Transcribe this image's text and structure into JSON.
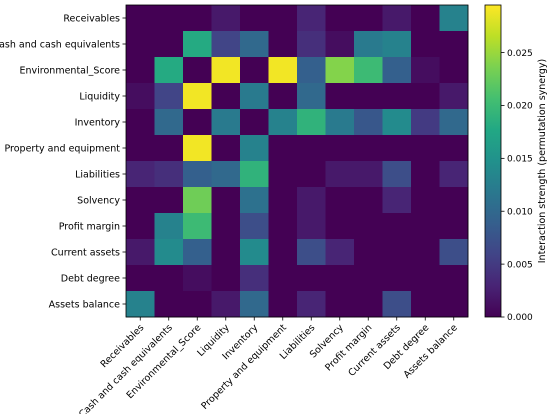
{
  "chart_data": {
    "type": "heatmap",
    "title": "",
    "xlabel": "",
    "ylabel": "",
    "x_categories": [
      "Receivables",
      "Cash and cash equivalents",
      "Environmental_Score",
      "Liquidity",
      "Inventory",
      "Property and equipment",
      "Liabilities",
      "Solvency",
      "Profit margin",
      "Current assets",
      "Debt degree",
      "Assets balance"
    ],
    "y_categories": [
      "Receivables",
      "Cash and cash equivalents",
      "Environmental_Score",
      "Liquidity",
      "Inventory",
      "Property and equipment",
      "Liabilities",
      "Solvency",
      "Profit margin",
      "Current assets",
      "Debt degree",
      "Assets balance"
    ],
    "values": [
      [
        0.0,
        0.0,
        0.0,
        0.002,
        0.0,
        0.0,
        0.003,
        0.0,
        0.0,
        0.002,
        0.0,
        0.013
      ],
      [
        0.0,
        0.0,
        0.018,
        0.006,
        0.01,
        0.0,
        0.004,
        0.001,
        0.012,
        0.013,
        0.0,
        0.0
      ],
      [
        0.0,
        0.018,
        0.0,
        0.029,
        0.0,
        0.029,
        0.009,
        0.024,
        0.02,
        0.009,
        0.001,
        0.0
      ],
      [
        0.001,
        0.006,
        0.029,
        0.0,
        0.012,
        0.0,
        0.01,
        0.0,
        0.0,
        0.0,
        0.0,
        0.002
      ],
      [
        0.0,
        0.01,
        0.0,
        0.012,
        0.0,
        0.013,
        0.019,
        0.012,
        0.008,
        0.014,
        0.005,
        0.01
      ],
      [
        0.0,
        0.0,
        0.029,
        0.0,
        0.013,
        0.0,
        0.0,
        0.0,
        0.0,
        0.0,
        0.0,
        0.0
      ],
      [
        0.003,
        0.004,
        0.009,
        0.01,
        0.019,
        0.0,
        0.0,
        0.002,
        0.002,
        0.007,
        0.0,
        0.003
      ],
      [
        0.0,
        0.0,
        0.023,
        0.0,
        0.011,
        0.0,
        0.002,
        0.0,
        0.0,
        0.003,
        0.0,
        0.0
      ],
      [
        0.0,
        0.013,
        0.02,
        0.0,
        0.007,
        0.0,
        0.002,
        0.0,
        0.0,
        0.0,
        0.0,
        0.0
      ],
      [
        0.002,
        0.014,
        0.009,
        0.0,
        0.014,
        0.0,
        0.007,
        0.003,
        0.0,
        0.0,
        0.0,
        0.007
      ],
      [
        0.0,
        0.0,
        0.001,
        0.0,
        0.004,
        0.0,
        0.0,
        0.0,
        0.0,
        0.0,
        0.0,
        0.0
      ],
      [
        0.013,
        0.0,
        0.0,
        0.002,
        0.01,
        0.0,
        0.003,
        0.0,
        0.0,
        0.007,
        0.0,
        0.0
      ]
    ],
    "colormap": "viridis",
    "vmin": 0.0,
    "vmax": 0.0295,
    "colorbar": {
      "label": "Interaction strength (permutation synergy)",
      "ticks": [
        0.0,
        0.005,
        0.01,
        0.015,
        0.02,
        0.025
      ],
      "tick_labels": [
        "0.000",
        "0.005",
        "0.010",
        "0.015",
        "0.020",
        "0.025"
      ]
    }
  }
}
